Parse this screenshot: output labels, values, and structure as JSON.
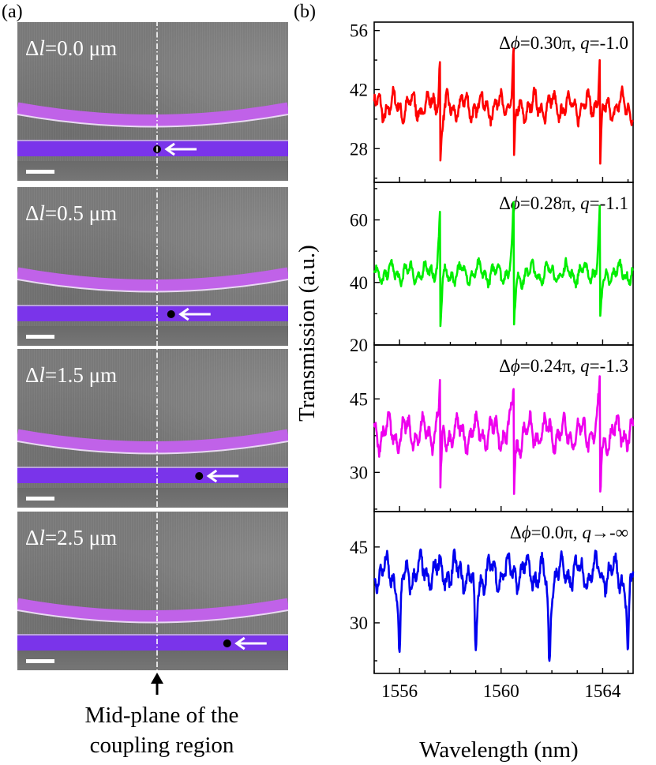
{
  "figure": {
    "panel_a_label": "(a)",
    "panel_b_label": "(b)",
    "caption_line1": "Mid-plane of the",
    "caption_line2": "coupling region",
    "colors": {
      "ring": "#c062e8",
      "bus": "#7a34ea",
      "sem": "#7d7d7d"
    }
  },
  "sem_panels": [
    {
      "dl_symbol": "Δ",
      "dl_var": "l",
      "dl_value": "=0.0 μm",
      "dot_offset": 0.0
    },
    {
      "dl_symbol": "Δ",
      "dl_var": "l",
      "dl_value": "=0.5 μm",
      "dot_offset": 0.5
    },
    {
      "dl_symbol": "Δ",
      "dl_var": "l",
      "dl_value": "=1.5 μm",
      "dot_offset": 1.5
    },
    {
      "dl_symbol": "Δ",
      "dl_var": "l",
      "dl_value": "=2.5 μm",
      "dot_offset": 2.5
    }
  ],
  "chart_data": {
    "type": "line",
    "xlabel": "Wavelength (nm)",
    "ylabel": "Transmission (a.u.)",
    "xlim": [
      1555,
      1565.2
    ],
    "xticks": [
      1556,
      1560,
      1564
    ],
    "resonances": [
      1557.6,
      1560.5,
      1563.9
    ],
    "series": [
      {
        "annotation": "Δϕ=0.30π, q=-1.0",
        "phi": "Δϕ=0.30π",
        "q": "q=-1.0",
        "color": "#ff0000",
        "ylim": [
          20,
          58
        ],
        "yticks": [
          28,
          42,
          56
        ],
        "base": 38,
        "sign": 1,
        "peak": 50,
        "dip": 24
      },
      {
        "annotation": "Δϕ=0.28π, q=-1.1",
        "phi": "Δϕ=0.28π",
        "q": "q=-1.1",
        "color": "#00ee00",
        "ylim": [
          20,
          72
        ],
        "yticks": [
          20,
          40,
          60
        ],
        "base": 43,
        "sign": 1,
        "peak": 63,
        "dip": 25
      },
      {
        "annotation": "Δϕ=0.24π, q=-1.3",
        "phi": "Δϕ=0.24π",
        "q": "q=-1.3",
        "color": "#ee00ee",
        "ylim": [
          22,
          56
        ],
        "yticks": [
          30,
          45
        ],
        "base": 38,
        "sign": 1,
        "peak": 48,
        "dip": 26
      },
      {
        "annotation": "Δϕ=0.0π, q→-∞",
        "phi": "Δϕ=0.0π",
        "q": "q→-∞",
        "color": "#0000ee",
        "ylim": [
          20,
          52
        ],
        "yticks": [
          30,
          45
        ],
        "base": 40,
        "sign": -1,
        "peak": 40,
        "dip": 22,
        "dips": [
          1556.0,
          1559.0,
          1561.9,
          1565.0
        ]
      }
    ]
  }
}
